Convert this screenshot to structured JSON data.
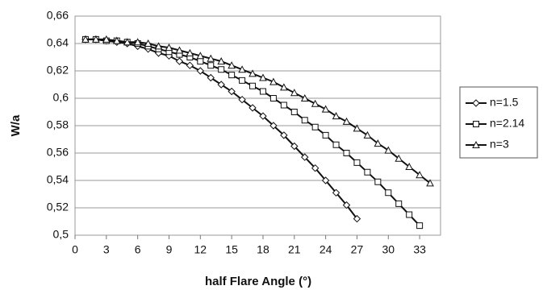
{
  "chart_data": {
    "type": "line",
    "x_label": "half Flare Angle (°)",
    "y_label": "W/a",
    "x": [
      1,
      2,
      3,
      4,
      5,
      6,
      7,
      8,
      9,
      10,
      11,
      12,
      13,
      14,
      15,
      16,
      17,
      18,
      19,
      20,
      21,
      22,
      23,
      24,
      25,
      26,
      27,
      28,
      29,
      30,
      31,
      32,
      33,
      34
    ],
    "series": [
      {
        "name": "n=1.5",
        "color": "#111111",
        "marker": "diamond",
        "values": [
          0.643,
          0.643,
          0.642,
          0.641,
          0.64,
          0.638,
          0.636,
          0.633,
          0.631,
          0.627,
          0.624,
          0.62,
          0.615,
          0.61,
          0.605,
          0.599,
          0.593,
          0.587,
          0.58,
          0.573,
          0.565,
          0.557,
          0.549,
          0.54,
          0.531,
          0.522,
          0.512,
          null,
          null,
          null,
          null,
          null,
          null,
          null
        ]
      },
      {
        "name": "n=2.14",
        "color": "#111111",
        "marker": "square",
        "values": [
          0.643,
          0.643,
          0.642,
          0.642,
          0.641,
          0.64,
          0.638,
          0.636,
          0.634,
          0.632,
          0.63,
          0.627,
          0.624,
          0.621,
          0.617,
          0.613,
          0.609,
          0.605,
          0.6,
          0.595,
          0.59,
          0.584,
          0.579,
          0.573,
          0.566,
          0.56,
          0.553,
          0.546,
          0.539,
          0.531,
          0.523,
          0.515,
          0.507,
          null
        ]
      },
      {
        "name": "n=3",
        "color": "#111111",
        "marker": "triangle",
        "values": [
          0.643,
          0.643,
          0.643,
          0.642,
          0.641,
          0.641,
          0.64,
          0.638,
          0.637,
          0.635,
          0.633,
          0.631,
          0.629,
          0.627,
          0.624,
          0.621,
          0.618,
          0.615,
          0.612,
          0.608,
          0.604,
          0.6,
          0.596,
          0.592,
          0.587,
          0.583,
          0.578,
          0.573,
          0.567,
          0.562,
          0.556,
          0.55,
          0.544,
          0.538
        ]
      }
    ],
    "xlim": [
      0,
      35
    ],
    "xticks": [
      0,
      3,
      6,
      9,
      12,
      15,
      18,
      21,
      24,
      27,
      30,
      33
    ],
    "ylim": [
      0.5,
      0.66
    ],
    "yticks": [
      {
        "value": 0.5,
        "label": "0,5"
      },
      {
        "value": 0.52,
        "label": "0,52"
      },
      {
        "value": 0.54,
        "label": "0,54"
      },
      {
        "value": 0.56,
        "label": "0,56"
      },
      {
        "value": 0.58,
        "label": "0,58"
      },
      {
        "value": 0.6,
        "label": "0,6"
      },
      {
        "value": 0.62,
        "label": "0,62"
      },
      {
        "value": 0.64,
        "label": "0,64"
      },
      {
        "value": 0.66,
        "label": "0,66"
      }
    ],
    "grid": true,
    "legend": "right"
  }
}
